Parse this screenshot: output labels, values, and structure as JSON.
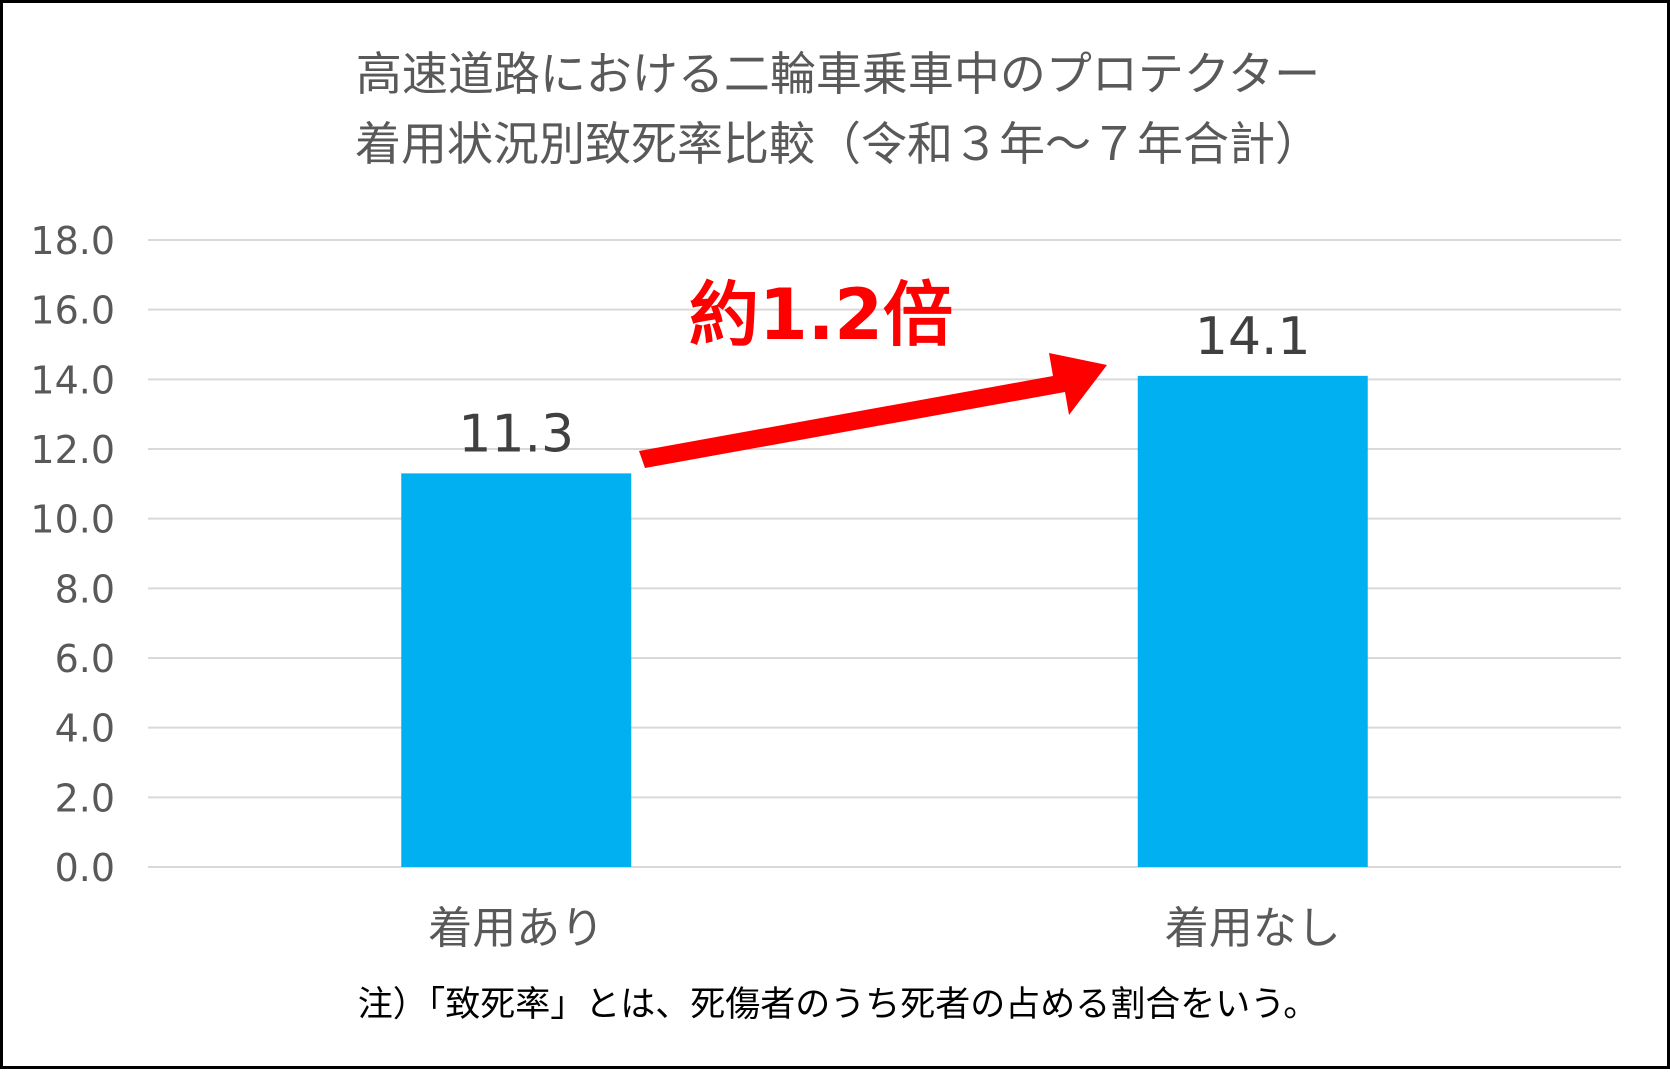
{
  "title_lines": [
    "高速道路における二輪車乗車中のプロテクター",
    "着用状況別致死率比較（令和３年～７年合計）"
  ],
  "chart_data": {
    "type": "bar",
    "title": "高速道路における二輪車乗車中のプロテクター着用状況別致死率比較（令和３年～７年合計）",
    "categories": [
      "着用あり",
      "着用なし"
    ],
    "values": [
      11.3,
      14.1
    ],
    "value_labels": [
      "11.3",
      "14.1"
    ],
    "yticks": [
      "0.0",
      "2.0",
      "4.0",
      "6.0",
      "8.0",
      "10.0",
      "12.0",
      "14.0",
      "16.0",
      "18.0"
    ],
    "ylim": [
      0,
      18
    ],
    "grid": true,
    "legend": "none",
    "bar_color": "#00b0f0",
    "annotation": {
      "text": "約1.2倍",
      "color": "#ff0000"
    }
  },
  "footnote": "注）「致死率」とは、死傷者のうち死者の占める割合をいう。"
}
